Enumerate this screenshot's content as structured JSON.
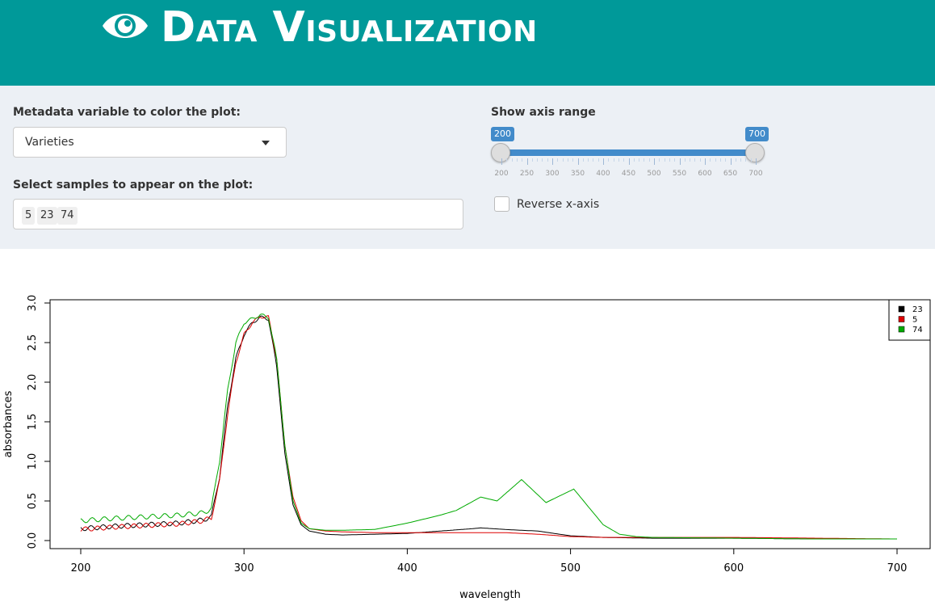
{
  "header": {
    "title": "Data Visualization",
    "icon": "eye-icon",
    "background": "#009999"
  },
  "controls": {
    "metadata_label": "Metadata variable to color the plot:",
    "metadata_value": "Varieties",
    "samples_label": "Select samples to appear on the plot:",
    "samples": [
      "5",
      "23",
      "74"
    ],
    "axis_range_label": "Show axis range",
    "axis_range_min": "200",
    "axis_range_max": "700",
    "axis_ticks": [
      "200",
      "250",
      "300",
      "350",
      "400",
      "450",
      "500",
      "550",
      "600",
      "650",
      "700"
    ],
    "reverse_label": "Reverse x-axis",
    "reverse_checked": false
  },
  "chart_data": {
    "type": "line",
    "xlabel": "wavelength",
    "ylabel": "absorbances",
    "xlim": [
      200,
      700
    ],
    "ylim": [
      0,
      3.0
    ],
    "xticks": [
      "200",
      "300",
      "400",
      "500",
      "600",
      "700"
    ],
    "yticks": [
      "0.0",
      "0.5",
      "1.0",
      "1.5",
      "2.0",
      "2.5",
      "3.0"
    ],
    "legend_position": "top-right",
    "series": [
      {
        "name": "23",
        "color": "#000000",
        "x": [
          200,
          220,
          240,
          260,
          275,
          280,
          285,
          290,
          295,
          300,
          305,
          310,
          315,
          320,
          325,
          330,
          335,
          340,
          350,
          360,
          380,
          400,
          420,
          440,
          445,
          460,
          480,
          500,
          520,
          550,
          600,
          650,
          700
        ],
        "y": [
          0.15,
          0.18,
          0.2,
          0.22,
          0.26,
          0.3,
          0.8,
          1.7,
          2.3,
          2.6,
          2.75,
          2.82,
          2.8,
          2.2,
          1.1,
          0.45,
          0.2,
          0.12,
          0.08,
          0.07,
          0.08,
          0.09,
          0.12,
          0.15,
          0.16,
          0.14,
          0.12,
          0.06,
          0.04,
          0.03,
          0.03,
          0.02,
          0.02
        ]
      },
      {
        "name": "5",
        "color": "#dd0000",
        "x": [
          200,
          220,
          240,
          260,
          275,
          280,
          285,
          290,
          295,
          300,
          305,
          310,
          315,
          320,
          325,
          330,
          335,
          340,
          350,
          360,
          380,
          400,
          420,
          440,
          460,
          480,
          500,
          520,
          550,
          600,
          650,
          700
        ],
        "y": [
          0.14,
          0.17,
          0.19,
          0.21,
          0.25,
          0.29,
          0.75,
          1.6,
          2.25,
          2.6,
          2.75,
          2.83,
          2.82,
          2.3,
          1.2,
          0.55,
          0.25,
          0.15,
          0.12,
          0.11,
          0.1,
          0.1,
          0.1,
          0.1,
          0.1,
          0.08,
          0.05,
          0.04,
          0.04,
          0.04,
          0.03,
          0.02
        ]
      },
      {
        "name": "74",
        "color": "#00aa00",
        "x": [
          200,
          220,
          240,
          260,
          275,
          280,
          285,
          290,
          295,
          300,
          305,
          310,
          315,
          320,
          325,
          330,
          335,
          340,
          350,
          360,
          380,
          400,
          420,
          430,
          445,
          455,
          470,
          485,
          502,
          510,
          520,
          530,
          540,
          550,
          600,
          650,
          700
        ],
        "y": [
          0.25,
          0.28,
          0.3,
          0.32,
          0.35,
          0.4,
          1.0,
          1.9,
          2.5,
          2.75,
          2.8,
          2.85,
          2.82,
          2.3,
          1.2,
          0.5,
          0.22,
          0.15,
          0.13,
          0.13,
          0.14,
          0.22,
          0.32,
          0.38,
          0.55,
          0.5,
          0.77,
          0.48,
          0.65,
          0.45,
          0.2,
          0.08,
          0.05,
          0.04,
          0.03,
          0.02,
          0.02
        ]
      }
    ]
  }
}
